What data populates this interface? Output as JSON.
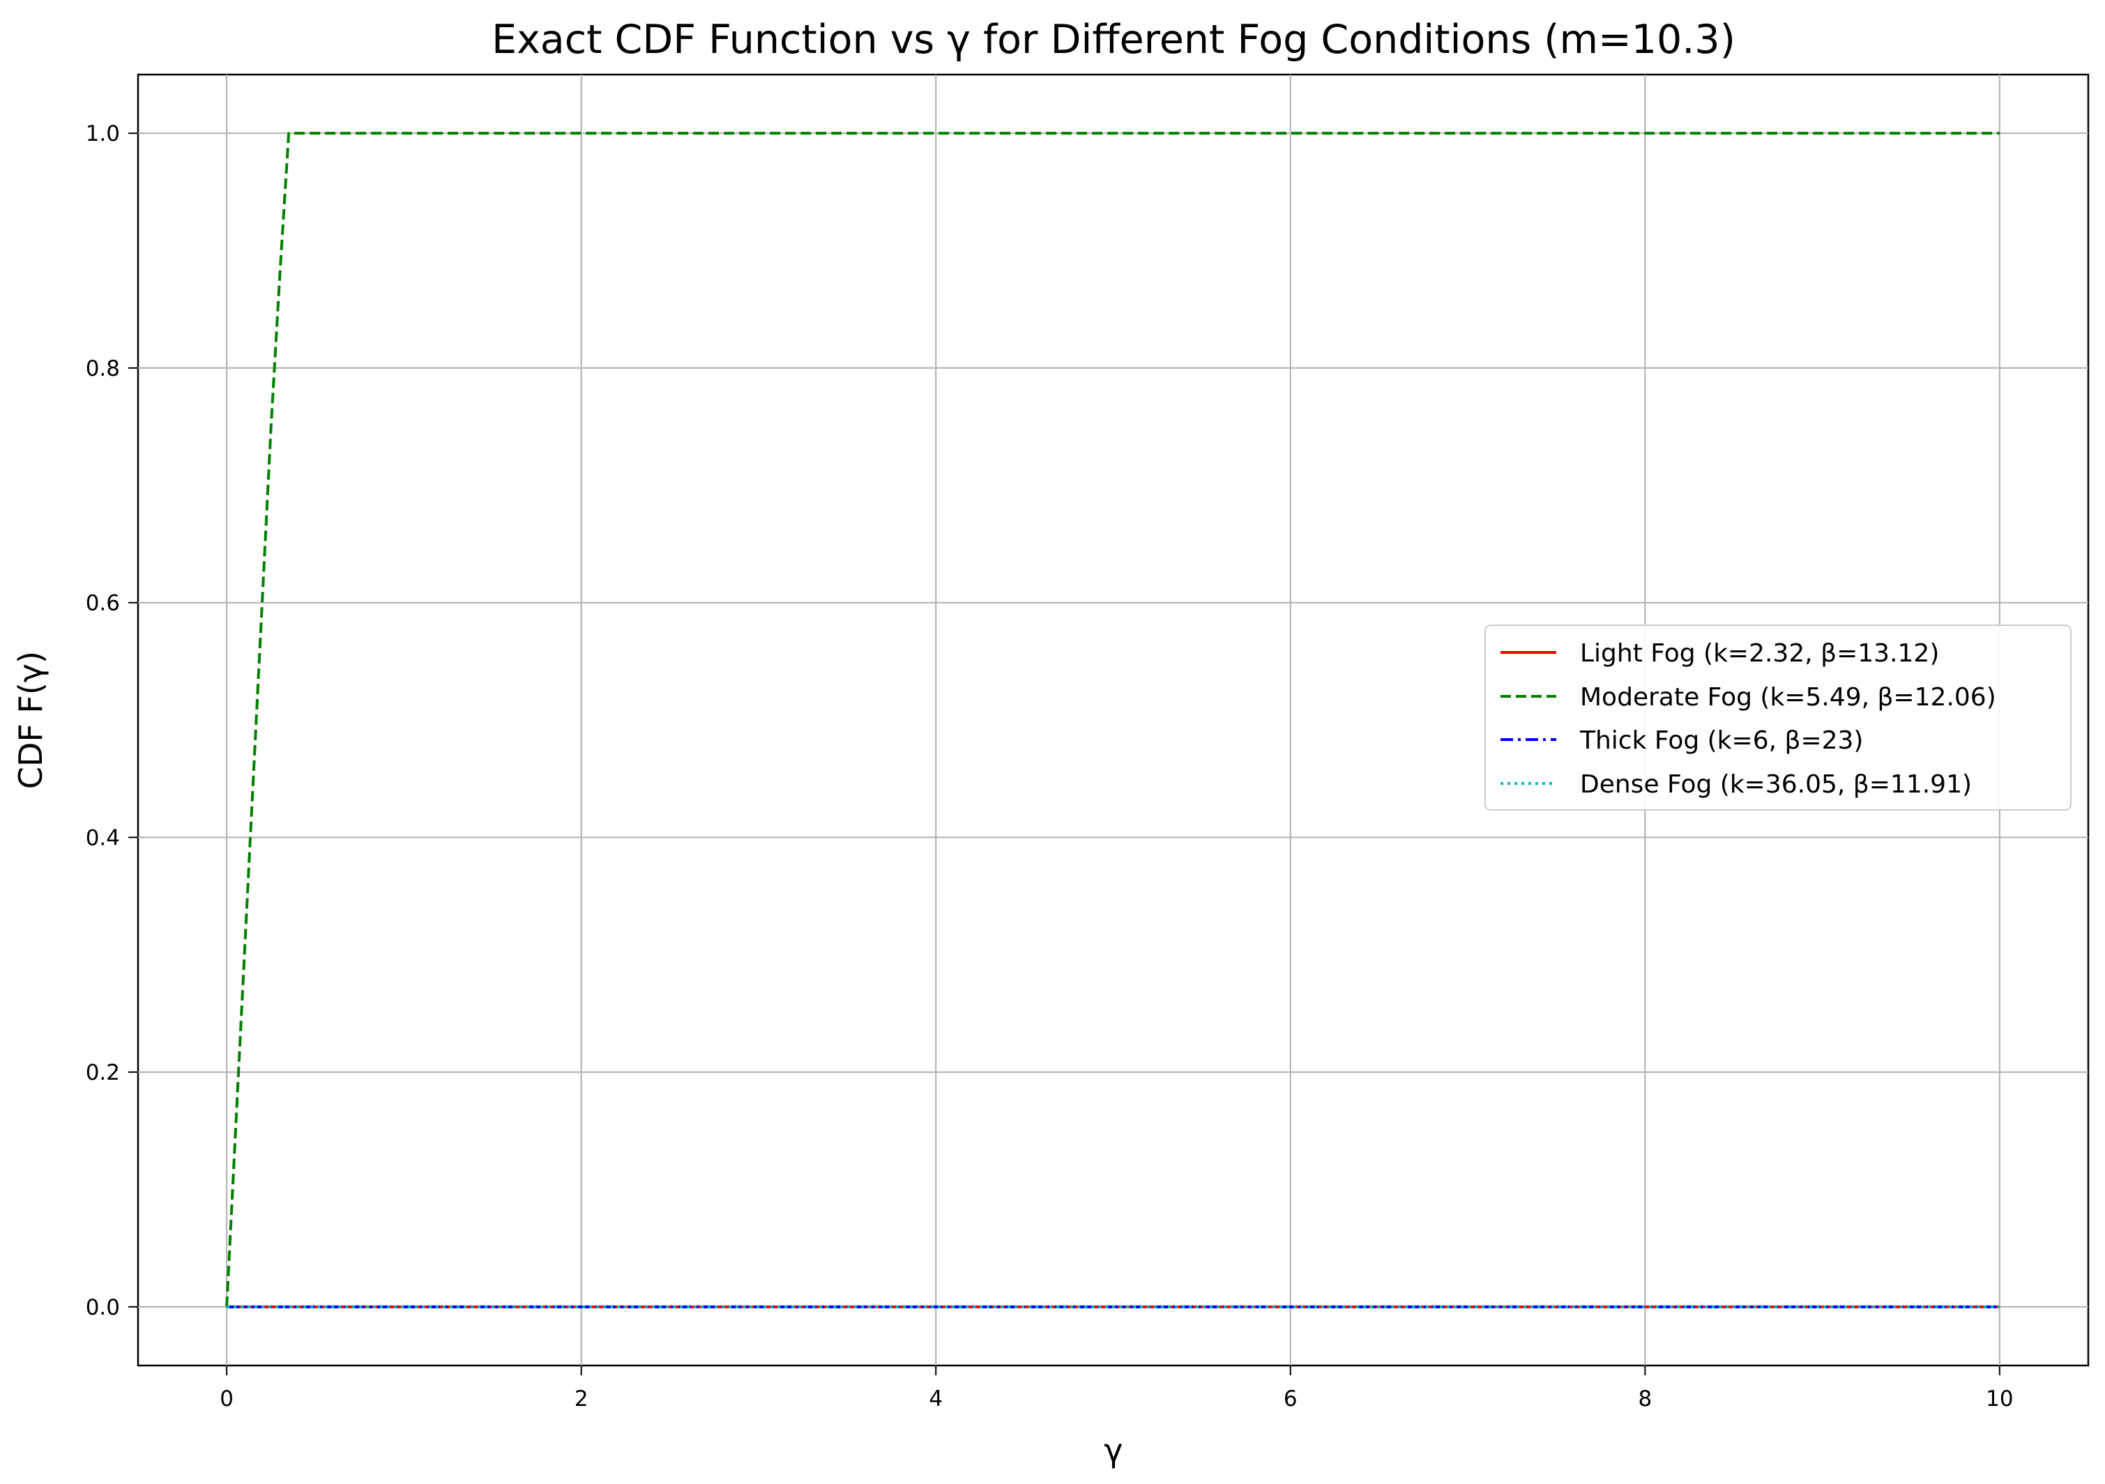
{
  "chart_data": {
    "type": "line",
    "title": "Exact CDF Function vs γ for Different Fog Conditions (m=10.3)",
    "xlabel": "γ",
    "ylabel": "CDF F(γ)",
    "xlim": [
      -0.5,
      10.5
    ],
    "ylim": [
      -0.05,
      1.05
    ],
    "xticks": [
      0,
      2,
      4,
      6,
      8,
      10
    ],
    "xtick_labels": [
      "0",
      "2",
      "4",
      "6",
      "8",
      "10"
    ],
    "yticks": [
      0.0,
      0.2,
      0.4,
      0.6,
      0.8,
      1.0
    ],
    "ytick_labels": [
      "0.0",
      "0.2",
      "0.4",
      "0.6",
      "0.8",
      "1.0"
    ],
    "grid": true,
    "legend_position": "center-right",
    "series": [
      {
        "name": "Light Fog (k=2.32, β=13.12)",
        "color": "#ff0000",
        "line_style": "solid",
        "x": [
          0,
          10
        ],
        "y": [
          0.0,
          0.0
        ]
      },
      {
        "name": "Moderate Fog (k=5.49, β=12.06)",
        "color": "#008000",
        "line_style": "dashed",
        "x": [
          0,
          0.05,
          0.1,
          0.15,
          0.2,
          0.25,
          0.3,
          0.35,
          0.4,
          1,
          2,
          4,
          6,
          8,
          10
        ],
        "y": [
          0.0,
          0.15,
          0.3,
          0.45,
          0.6,
          0.75,
          0.88,
          1.0,
          1.0,
          1.0,
          1.0,
          1.0,
          1.0,
          1.0,
          1.0
        ]
      },
      {
        "name": "Thick Fog (k=6, β=23)",
        "color": "#0000ff",
        "line_style": "dashdot",
        "x": [
          0,
          10
        ],
        "y": [
          0.0,
          0.0
        ]
      },
      {
        "name": "Dense Fog (k=36.05, β=11.91)",
        "color": "#00bfbf",
        "line_style": "dotted",
        "x": [
          0,
          10
        ],
        "y": [
          0.0,
          0.0
        ]
      }
    ]
  }
}
